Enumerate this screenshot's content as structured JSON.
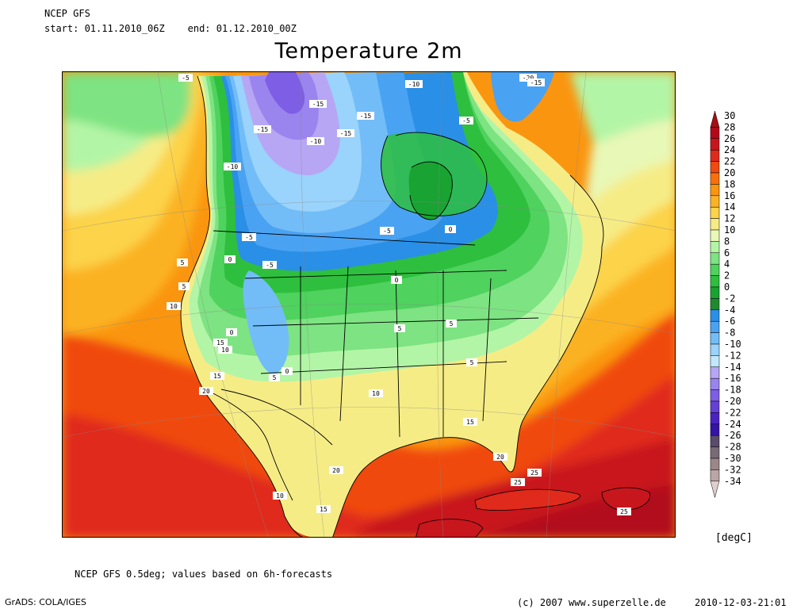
{
  "header": {
    "model": "NCEP GFS",
    "period": "start: 01.11.2010_06Z    end: 01.12.2010_00Z",
    "title": "Temperature 2m"
  },
  "legend": {
    "unit": "[degC]",
    "entries": [
      {
        "label": "30",
        "color": "#a50f15"
      },
      {
        "label": "28",
        "color": "#b2091a"
      },
      {
        "label": "26",
        "color": "#c8161d"
      },
      {
        "label": "24",
        "color": "#e02a1c"
      },
      {
        "label": "22",
        "color": "#f04a10"
      },
      {
        "label": "20",
        "color": "#f8700c"
      },
      {
        "label": "18",
        "color": "#fa950f"
      },
      {
        "label": "16",
        "color": "#fbb224"
      },
      {
        "label": "14",
        "color": "#fcd34a"
      },
      {
        "label": "12",
        "color": "#f6ec86"
      },
      {
        "label": "10",
        "color": "#e8f8b6"
      },
      {
        "label": "8",
        "color": "#b3f5a6"
      },
      {
        "label": "6",
        "color": "#7ee382"
      },
      {
        "label": "4",
        "color": "#4fd25e"
      },
      {
        "label": "2",
        "color": "#2ebf3e"
      },
      {
        "label": "0",
        "color": "#19a332"
      },
      {
        "label": "-2",
        "color": "#1f8a2e"
      },
      {
        "label": "-4",
        "color": "#2a8fe6"
      },
      {
        "label": "-6",
        "color": "#4aa2f2"
      },
      {
        "label": "-8",
        "color": "#72bdf7"
      },
      {
        "label": "-10",
        "color": "#9ad3fb"
      },
      {
        "label": "-12",
        "color": "#c1e8fd"
      },
      {
        "label": "-14",
        "color": "#b7a6f4"
      },
      {
        "label": "-16",
        "color": "#9a84ee"
      },
      {
        "label": "-18",
        "color": "#7d5ee4"
      },
      {
        "label": "-20",
        "color": "#6440d6"
      },
      {
        "label": "-22",
        "color": "#4b22c2"
      },
      {
        "label": "-24",
        "color": "#3513a6"
      },
      {
        "label": "-26",
        "color": "#5a4a6b"
      },
      {
        "label": "-28",
        "color": "#7a6a78"
      },
      {
        "label": "-30",
        "color": "#9b8789"
      },
      {
        "label": "-32",
        "color": "#bba5a6"
      },
      {
        "label": "-34",
        "color": "#e0cfcf"
      }
    ]
  },
  "map_labels": [
    {
      "text": "-15"
    },
    {
      "text": "-15"
    },
    {
      "text": "-15"
    },
    {
      "text": "-15"
    },
    {
      "text": "-10"
    },
    {
      "text": "-10"
    },
    {
      "text": "-10"
    },
    {
      "text": "-20"
    },
    {
      "text": "-15"
    },
    {
      "text": "-5"
    },
    {
      "text": "-5"
    },
    {
      "text": "-5"
    },
    {
      "text": "-5"
    },
    {
      "text": "-5"
    },
    {
      "text": "0"
    },
    {
      "text": "0"
    },
    {
      "text": "0"
    },
    {
      "text": "5"
    },
    {
      "text": "5"
    },
    {
      "text": "5"
    },
    {
      "text": "5"
    },
    {
      "text": "10"
    },
    {
      "text": "10"
    },
    {
      "text": "10"
    },
    {
      "text": "15"
    },
    {
      "text": "15"
    },
    {
      "text": "15"
    },
    {
      "text": "15"
    },
    {
      "text": "20"
    },
    {
      "text": "20"
    },
    {
      "text": "20"
    },
    {
      "text": "25"
    },
    {
      "text": "25"
    },
    {
      "text": "25"
    },
    {
      "text": "5"
    },
    {
      "text": "0"
    },
    {
      "text": "0"
    },
    {
      "text": "5"
    },
    {
      "text": "10"
    }
  ],
  "footer": {
    "note": "NCEP GFS 0.5deg; values based on 6h-forecasts",
    "grads": "GrADS: COLA/IGES",
    "copyright": "(c) 2007 www.superzelle.de",
    "timestamp": "2010-12-03-21:01"
  }
}
